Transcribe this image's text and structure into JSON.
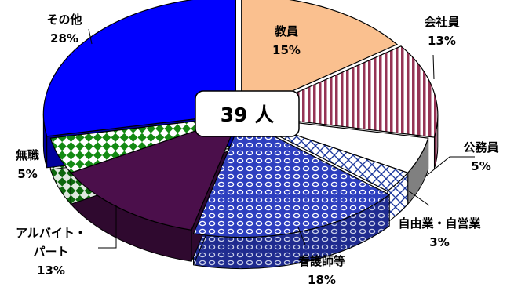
{
  "chart_data": {
    "type": "pie",
    "style": "3d-exploded",
    "title": "",
    "center_label": "39 人",
    "slices": [
      {
        "label": "教員",
        "percent": "15%",
        "value": 15,
        "color": "#fac08f",
        "pattern": "solid"
      },
      {
        "label": "会社員",
        "percent": "13%",
        "value": 13,
        "color": "#953455",
        "pattern": "vertical-stripes"
      },
      {
        "label": "公務員",
        "percent": "5%",
        "value": 5,
        "color": "#ffffff",
        "pattern": "solid"
      },
      {
        "label": "自由業・自営業",
        "percent": "3%",
        "value": 3,
        "color": "#1f3a9e",
        "pattern": "crosshatch"
      },
      {
        "label": "看護師等",
        "percent": "18%",
        "value": 18,
        "color": "#2e3fbf",
        "pattern": "circles"
      },
      {
        "label": "アルバイト・\nパート",
        "percent": "13%",
        "value": 13,
        "color": "#4b0f4b",
        "pattern": "solid"
      },
      {
        "label": "無職",
        "percent": "5%",
        "value": 5,
        "color": "#138a13",
        "pattern": "checker"
      },
      {
        "label": "その他",
        "percent": "28%",
        "value": 28,
        "color": "#0000ff",
        "pattern": "solid"
      }
    ]
  }
}
